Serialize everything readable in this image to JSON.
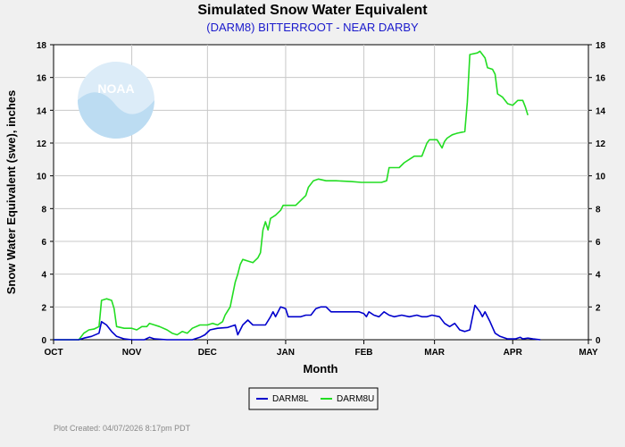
{
  "colors": {
    "background": "#f0f0f0",
    "plot_bg": "#ffffff",
    "grid": "#c8c8c8",
    "series_low": "#0000cc",
    "series_up": "#22dd22",
    "logo": "#cfe6f5"
  },
  "logo": {
    "icon": "noaa-logo-icon",
    "text": "NOAA"
  },
  "footer": {
    "text": "Plot Created: 04/07/2026 8:17pm PDT"
  },
  "chart_data": {
    "type": "line",
    "title": "Simulated Snow Water Equivalent",
    "subtitle": "(DARM8) BITTERROOT - NEAR DARBY",
    "xlabel": "Month",
    "ylabel": "Snow Water Equivalent (swe),  inches",
    "x_unit": "day offset from Oct 1",
    "xlim": [
      0,
      212
    ],
    "ylim": [
      0,
      18
    ],
    "y_ticks": [
      "0",
      "2",
      "4",
      "6",
      "8",
      "10",
      "12",
      "14",
      "16",
      "18"
    ],
    "x_ticks": [
      {
        "label": "OCT",
        "day": 0
      },
      {
        "label": "NOV",
        "day": 31
      },
      {
        "label": "DEC",
        "day": 61
      },
      {
        "label": "JAN",
        "day": 92
      },
      {
        "label": "FEB",
        "day": 123
      },
      {
        "label": "MAR",
        "day": 151
      },
      {
        "label": "APR",
        "day": 182
      },
      {
        "label": "MAY",
        "day": 212
      }
    ],
    "grid": true,
    "legend_position": "bottom-center",
    "series": [
      {
        "name": "DARM8L",
        "points": [
          [
            0,
            0
          ],
          [
            10,
            0
          ],
          [
            12,
            0.1
          ],
          [
            15,
            0.2
          ],
          [
            18,
            0.4
          ],
          [
            19,
            1.1
          ],
          [
            21,
            0.9
          ],
          [
            23,
            0.5
          ],
          [
            25,
            0.2
          ],
          [
            28,
            0.05
          ],
          [
            31,
            0
          ],
          [
            36,
            0
          ],
          [
            38,
            0.15
          ],
          [
            40,
            0.05
          ],
          [
            45,
            0
          ],
          [
            50,
            0
          ],
          [
            55,
            0
          ],
          [
            58,
            0.15
          ],
          [
            60,
            0.3
          ],
          [
            62,
            0.6
          ],
          [
            65,
            0.7
          ],
          [
            69,
            0.75
          ],
          [
            72,
            0.9
          ],
          [
            73,
            0.3
          ],
          [
            75,
            0.9
          ],
          [
            77,
            1.2
          ],
          [
            79,
            0.9
          ],
          [
            81,
            0.9
          ],
          [
            84,
            0.9
          ],
          [
            86,
            1.4
          ],
          [
            87,
            1.7
          ],
          [
            88,
            1.4
          ],
          [
            90,
            2.0
          ],
          [
            92,
            1.9
          ],
          [
            93,
            1.4
          ],
          [
            96,
            1.4
          ],
          [
            98,
            1.4
          ],
          [
            100,
            1.5
          ],
          [
            102,
            1.5
          ],
          [
            104,
            1.9
          ],
          [
            106,
            2.0
          ],
          [
            108,
            2.0
          ],
          [
            110,
            1.7
          ],
          [
            116,
            1.7
          ],
          [
            121,
            1.7
          ],
          [
            123,
            1.6
          ],
          [
            124,
            1.4
          ],
          [
            125,
            1.7
          ],
          [
            127,
            1.5
          ],
          [
            129,
            1.4
          ],
          [
            131,
            1.7
          ],
          [
            133,
            1.5
          ],
          [
            135,
            1.4
          ],
          [
            138,
            1.5
          ],
          [
            141,
            1.4
          ],
          [
            144,
            1.5
          ],
          [
            146,
            1.4
          ],
          [
            148,
            1.4
          ],
          [
            150,
            1.5
          ],
          [
            153,
            1.4
          ],
          [
            155,
            1.0
          ],
          [
            157,
            0.8
          ],
          [
            159,
            1.0
          ],
          [
            161,
            0.6
          ],
          [
            163,
            0.5
          ],
          [
            165,
            0.6
          ],
          [
            167,
            2.1
          ],
          [
            169,
            1.7
          ],
          [
            170,
            1.4
          ],
          [
            171,
            1.7
          ],
          [
            173,
            1.1
          ],
          [
            175,
            0.4
          ],
          [
            177,
            0.2
          ],
          [
            180,
            0.05
          ],
          [
            183,
            0.05
          ],
          [
            185,
            0.15
          ],
          [
            186,
            0.05
          ],
          [
            188,
            0.1
          ],
          [
            190,
            0.05
          ],
          [
            193,
            0
          ]
        ]
      },
      {
        "name": "DARM8U",
        "points": [
          [
            0,
            0
          ],
          [
            10,
            0
          ],
          [
            12,
            0.4
          ],
          [
            14,
            0.6
          ],
          [
            16,
            0.65
          ],
          [
            18,
            0.8
          ],
          [
            19,
            2.4
          ],
          [
            21,
            2.5
          ],
          [
            23,
            2.4
          ],
          [
            24,
            1.9
          ],
          [
            25,
            0.8
          ],
          [
            28,
            0.7
          ],
          [
            31,
            0.7
          ],
          [
            33,
            0.6
          ],
          [
            35,
            0.8
          ],
          [
            37,
            0.8
          ],
          [
            38,
            1.0
          ],
          [
            40,
            0.9
          ],
          [
            42,
            0.8
          ],
          [
            45,
            0.6
          ],
          [
            47,
            0.4
          ],
          [
            49,
            0.3
          ],
          [
            51,
            0.5
          ],
          [
            53,
            0.4
          ],
          [
            55,
            0.7
          ],
          [
            58,
            0.9
          ],
          [
            61,
            0.9
          ],
          [
            63,
            1.0
          ],
          [
            65,
            0.9
          ],
          [
            67,
            1.1
          ],
          [
            68,
            1.5
          ],
          [
            70,
            2.0
          ],
          [
            72,
            3.5
          ],
          [
            73,
            4.0
          ],
          [
            74,
            4.6
          ],
          [
            75,
            4.9
          ],
          [
            77,
            4.8
          ],
          [
            79,
            4.7
          ],
          [
            81,
            5.0
          ],
          [
            82,
            5.3
          ],
          [
            83,
            6.7
          ],
          [
            84,
            7.2
          ],
          [
            85,
            6.7
          ],
          [
            86,
            7.4
          ],
          [
            88,
            7.6
          ],
          [
            90,
            7.9
          ],
          [
            91,
            8.2
          ],
          [
            94,
            8.2
          ],
          [
            96,
            8.2
          ],
          [
            98,
            8.5
          ],
          [
            100,
            8.8
          ],
          [
            101,
            9.3
          ],
          [
            103,
            9.7
          ],
          [
            105,
            9.8
          ],
          [
            108,
            9.7
          ],
          [
            112,
            9.7
          ],
          [
            118,
            9.65
          ],
          [
            122,
            9.6
          ],
          [
            126,
            9.6
          ],
          [
            130,
            9.6
          ],
          [
            132,
            9.7
          ],
          [
            133,
            10.5
          ],
          [
            135,
            10.5
          ],
          [
            137,
            10.5
          ],
          [
            139,
            10.8
          ],
          [
            141,
            11.0
          ],
          [
            143,
            11.2
          ],
          [
            146,
            11.2
          ],
          [
            148,
            12.0
          ],
          [
            149,
            12.2
          ],
          [
            152,
            12.2
          ],
          [
            154,
            11.7
          ],
          [
            155,
            12.1
          ],
          [
            156,
            12.3
          ],
          [
            158,
            12.5
          ],
          [
            160,
            12.6
          ],
          [
            163,
            12.7
          ],
          [
            164,
            14.5
          ],
          [
            165,
            17.4
          ],
          [
            168,
            17.5
          ],
          [
            169,
            17.6
          ],
          [
            171,
            17.2
          ],
          [
            172,
            16.6
          ],
          [
            174,
            16.5
          ],
          [
            175,
            16.2
          ],
          [
            176,
            15.0
          ],
          [
            178,
            14.8
          ],
          [
            180,
            14.4
          ],
          [
            182,
            14.3
          ],
          [
            184,
            14.6
          ],
          [
            186,
            14.6
          ],
          [
            187,
            14.2
          ],
          [
            188,
            13.7
          ]
        ]
      }
    ]
  }
}
